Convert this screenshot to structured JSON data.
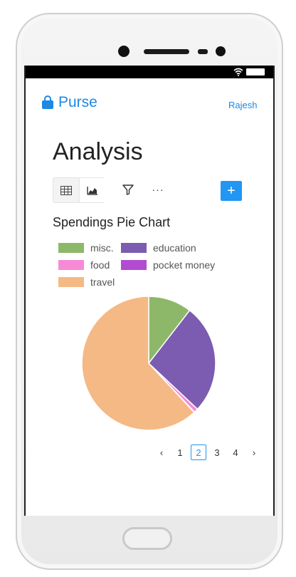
{
  "app": {
    "brand": "Purse",
    "user": "Rajesh"
  },
  "page": {
    "title": "Analysis"
  },
  "toolbar": {
    "more_label": "···",
    "add_label": "+"
  },
  "chart_title": "Spendings Pie Chart",
  "legend": [
    {
      "label": "misc.",
      "color": "#8db86a"
    },
    {
      "label": "education",
      "color": "#7b5cb0"
    },
    {
      "label": "food",
      "color": "#f78ad6"
    },
    {
      "label": "pocket money",
      "color": "#b24bd1"
    },
    {
      "label": "travel",
      "color": "#f5b985"
    }
  ],
  "chart_data": {
    "type": "pie",
    "categories": [
      "misc.",
      "education",
      "food",
      "pocket money",
      "travel"
    ],
    "values": [
      10.5,
      26.5,
      1.0,
      0.1,
      61.9
    ],
    "colors": [
      "#8db86a",
      "#7b5cb0",
      "#f78ad6",
      "#b24bd1",
      "#f5b985"
    ],
    "legend_position": "top",
    "start_angle": "top, clockwise"
  },
  "pagination": {
    "prev": "‹",
    "next": "›",
    "pages": [
      "1",
      "2",
      "3",
      "4"
    ],
    "current": "2"
  },
  "colors": {
    "accent": "#2196f3",
    "brand": "#1e88e5"
  }
}
